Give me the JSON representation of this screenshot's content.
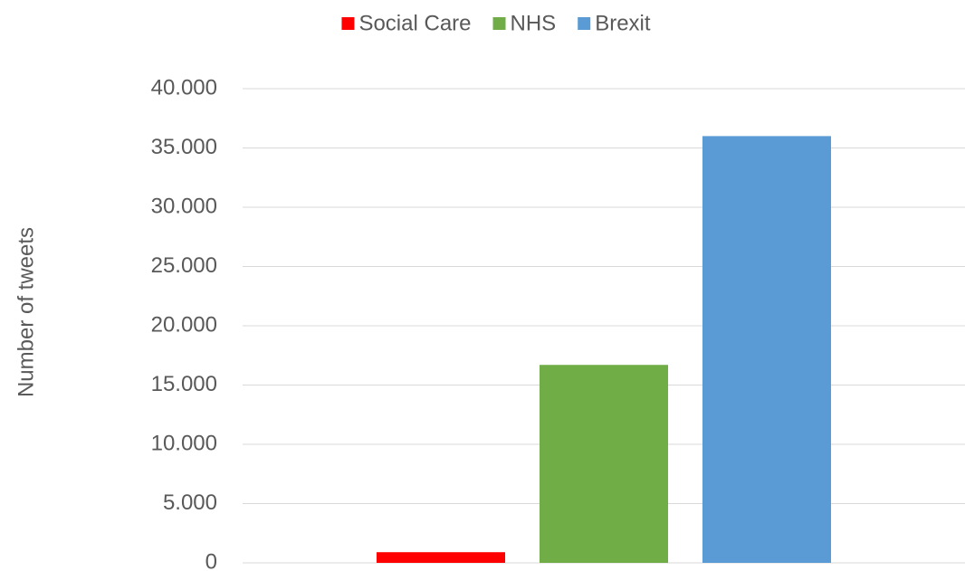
{
  "chart_data": {
    "type": "bar",
    "y_label": "Number of tweets",
    "categories": [
      null
    ],
    "series": [
      {
        "name": "Social Care",
        "color": "#ff0000",
        "values": [
          900
        ]
      },
      {
        "name": "NHS",
        "color": "#70ad47",
        "values": [
          16700
        ]
      },
      {
        "name": "Brexit",
        "color": "#5b9bd5",
        "values": [
          36000
        ]
      }
    ],
    "ylim": [
      0,
      40000
    ],
    "yticks": [
      0,
      {
        "value": 5000,
        "label": "5.000"
      },
      {
        "value": 10000,
        "label": "10.000"
      },
      {
        "value": 15000,
        "label": "15.000"
      },
      {
        "value": 20000,
        "label": "20.000"
      },
      {
        "value": 25000,
        "label": "25.000"
      },
      {
        "value": 30000,
        "label": "30.000"
      },
      {
        "value": 35000,
        "label": "35.000"
      },
      {
        "value": 40000,
        "label": "40.000"
      }
    ],
    "grid": true,
    "legend": "top"
  }
}
